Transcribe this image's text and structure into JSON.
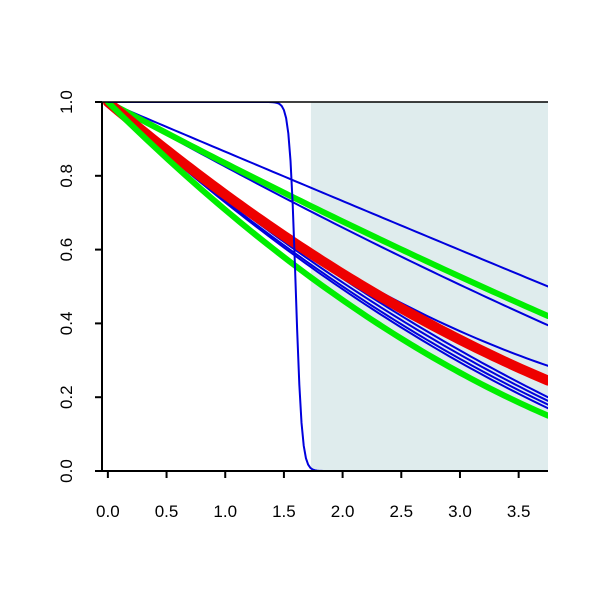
{
  "chart_data": {
    "type": "line",
    "title": "",
    "xlabel": "",
    "ylabel": "",
    "xlim": [
      -0.05,
      3.75
    ],
    "ylim": [
      0,
      1
    ],
    "x_ticks": [
      "0.0",
      "0.5",
      "1.0",
      "1.5",
      "2.0",
      "2.5",
      "3.0",
      "3.5"
    ],
    "y_ticks": [
      "0.0",
      "0.2",
      "0.4",
      "0.6",
      "0.8",
      "1.0"
    ],
    "grid": false,
    "shaded_region": {
      "x_from": 1.73,
      "x_to": 3.75,
      "color": "#dfeced"
    },
    "step_curve": {
      "midpoint": 1.6,
      "steepness": 38,
      "color": "#0000dd"
    },
    "series": [
      {
        "color": "#0000dd",
        "width": 2,
        "x": [
          0,
          1.75,
          3.75
        ],
        "y": [
          1,
          0.765,
          0.5
        ]
      },
      {
        "color": "#0000dd",
        "width": 2,
        "x": [
          0,
          1.75,
          3.75
        ],
        "y": [
          1,
          0.7,
          0.395
        ]
      },
      {
        "color": "#00ee00",
        "width": 6,
        "x": [
          0,
          1.75,
          3.75
        ],
        "y": [
          1,
          0.715,
          0.42
        ]
      },
      {
        "color": "#0000dd",
        "width": 2,
        "x": [
          0,
          1.75,
          3.75
        ],
        "y": [
          1,
          0.59,
          0.285
        ]
      },
      {
        "color": "#0000dd",
        "width": 2,
        "x": [
          0,
          1.75,
          3.75
        ],
        "y": [
          1,
          0.575,
          0.2
        ]
      },
      {
        "color": "#0000dd",
        "width": 2,
        "x": [
          0,
          1.75,
          3.75
        ],
        "y": [
          1,
          0.565,
          0.19
        ]
      },
      {
        "color": "#0000dd",
        "width": 2,
        "x": [
          0,
          1.75,
          3.75
        ],
        "y": [
          1,
          0.555,
          0.18
        ]
      },
      {
        "color": "#0000dd",
        "width": 2,
        "x": [
          0,
          1.75,
          3.75
        ],
        "y": [
          1,
          0.548,
          0.17
        ]
      },
      {
        "color": "#ee0000",
        "width": 10,
        "x": [
          0,
          1.75,
          3.75
        ],
        "y": [
          1,
          0.585,
          0.245
        ]
      },
      {
        "color": "#00ee00",
        "width": 6,
        "x": [
          0,
          1.75,
          3.75
        ],
        "y": [
          1,
          0.52,
          0.15
        ]
      }
    ]
  }
}
